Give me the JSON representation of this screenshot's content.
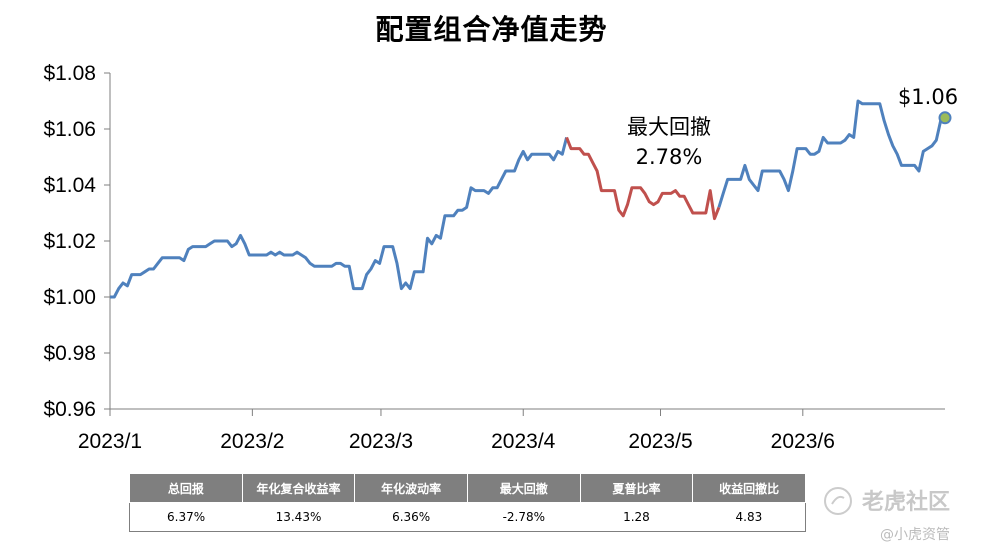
{
  "chart_data": {
    "type": "line",
    "title": "配置组合净值走势",
    "x_tick_labels": [
      "2023/1",
      "2023/2",
      "2023/3",
      "2023/4",
      "2023/5",
      "2023/6"
    ],
    "y_tick_labels": [
      "$1.08",
      "$1.06",
      "$1.04",
      "$1.02",
      "$1.00",
      "$0.98",
      "$0.96"
    ],
    "ylim": [
      0.96,
      1.08
    ],
    "grid": false,
    "line_color": "#4f81bd",
    "drawdown_color": "#c0504d",
    "end_marker_color": "#9bbb59",
    "drawdown_label_line1": "最大回撤",
    "drawdown_label_line2": "2.78%",
    "end_value_label": "$1.06",
    "values": [
      1.0,
      1.0,
      1.003,
      1.005,
      1.004,
      1.008,
      1.008,
      1.008,
      1.009,
      1.01,
      1.01,
      1.012,
      1.014,
      1.014,
      1.014,
      1.014,
      1.014,
      1.013,
      1.017,
      1.018,
      1.018,
      1.018,
      1.018,
      1.019,
      1.02,
      1.02,
      1.02,
      1.02,
      1.018,
      1.019,
      1.022,
      1.019,
      1.015,
      1.015,
      1.015,
      1.015,
      1.015,
      1.016,
      1.015,
      1.016,
      1.015,
      1.015,
      1.015,
      1.016,
      1.015,
      1.014,
      1.012,
      1.011,
      1.011,
      1.011,
      1.011,
      1.011,
      1.012,
      1.012,
      1.011,
      1.011,
      1.003,
      1.003,
      1.003,
      1.008,
      1.01,
      1.013,
      1.012,
      1.018,
      1.018,
      1.018,
      1.012,
      1.003,
      1.005,
      1.003,
      1.009,
      1.009,
      1.009,
      1.021,
      1.019,
      1.022,
      1.021,
      1.029,
      1.029,
      1.029,
      1.031,
      1.031,
      1.032,
      1.039,
      1.038,
      1.038,
      1.038,
      1.037,
      1.039,
      1.039,
      1.042,
      1.045,
      1.045,
      1.045,
      1.049,
      1.052,
      1.049,
      1.051,
      1.051,
      1.051,
      1.051,
      1.051,
      1.049,
      1.052,
      1.051,
      1.057,
      1.053,
      1.053,
      1.053,
      1.051,
      1.051,
      1.048,
      1.045,
      1.038,
      1.038,
      1.038,
      1.038,
      1.031,
      1.029,
      1.033,
      1.039,
      1.039,
      1.039,
      1.037,
      1.034,
      1.033,
      1.034,
      1.037,
      1.037,
      1.037,
      1.038,
      1.036,
      1.036,
      1.033,
      1.03,
      1.03,
      1.03,
      1.03,
      1.038,
      1.028,
      1.032,
      1.037,
      1.042,
      1.042,
      1.042,
      1.042,
      1.047,
      1.042,
      1.04,
      1.038,
      1.045,
      1.045,
      1.045,
      1.045,
      1.045,
      1.042,
      1.038,
      1.045,
      1.053,
      1.053,
      1.053,
      1.051,
      1.051,
      1.052,
      1.057,
      1.055,
      1.055,
      1.055,
      1.055,
      1.056,
      1.058,
      1.057,
      1.07,
      1.069,
      1.069,
      1.069,
      1.069,
      1.069,
      1.063,
      1.058,
      1.054,
      1.051,
      1.047,
      1.047,
      1.047,
      1.047,
      1.045,
      1.052,
      1.053,
      1.054,
      1.056,
      1.063,
      1.064
    ],
    "drawdown_start_index": 105,
    "drawdown_end_index": 140
  },
  "stats": {
    "headers": [
      "总回报",
      "年化复合收益率",
      "年化波动率",
      "最大回撤",
      "夏普比率",
      "收益回撤比"
    ],
    "values": [
      "6.37%",
      "13.43%",
      "6.36%",
      "-2.78%",
      "1.28",
      "4.83"
    ]
  },
  "watermark": {
    "brand": "老虎社区",
    "author": "@小虎资管"
  }
}
